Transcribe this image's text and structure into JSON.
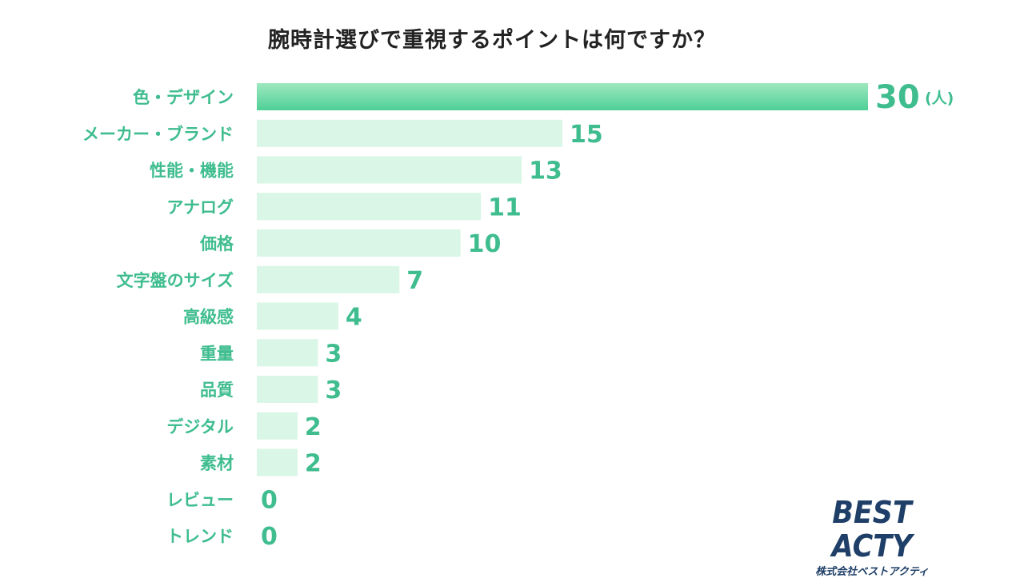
{
  "chart_data": {
    "type": "bar",
    "orientation": "horizontal",
    "title": "腕時計選びで重視するポイントは何ですか？",
    "categories": [
      "色・デザイン",
      "メーカー・ブランド",
      "性能・機能",
      "アナログ",
      "価格",
      "文字盤のサイズ",
      "高級感",
      "重量",
      "品質",
      "デジタル",
      "素材",
      "レビュー",
      "トレンド"
    ],
    "values": [
      30,
      15,
      13,
      11,
      10,
      7,
      4,
      3,
      3,
      2,
      2,
      0,
      0
    ],
    "unit": "(人)",
    "xlim": [
      0,
      30
    ],
    "grid": false,
    "legend": "none",
    "colors": {
      "highlight_bar_top": "#9ee8bf",
      "highlight_bar_bottom": "#4fcf96",
      "bar": "#d9f6e6",
      "label": "#3fbd8f",
      "title": "#222222"
    }
  },
  "logo": {
    "main": "BEST ACTY",
    "sub": "株式会社ベストアクティ",
    "color": "#1f3f68"
  }
}
